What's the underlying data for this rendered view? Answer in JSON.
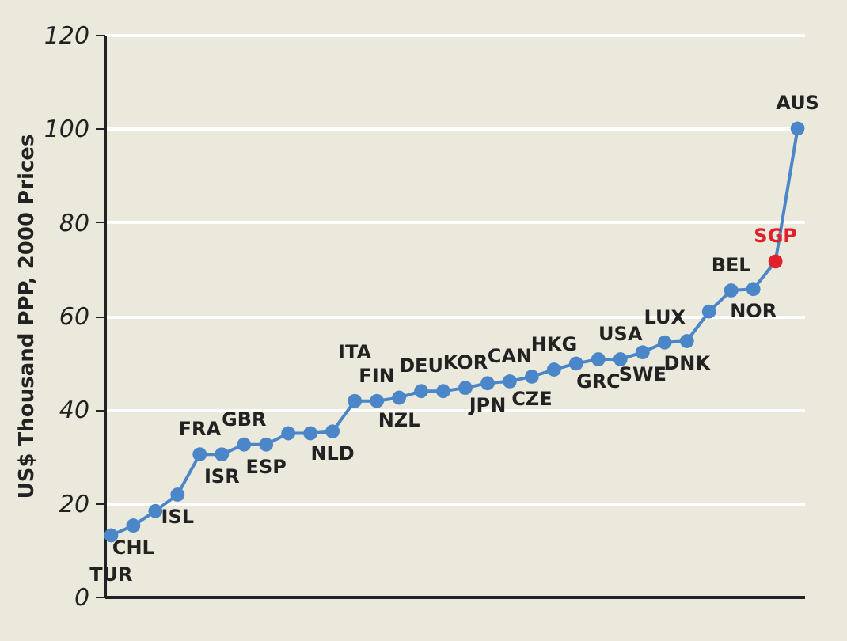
{
  "chart_data": {
    "type": "line",
    "ylabel": "US$ Thousand PPP,  2000 Prices",
    "categories": [
      "TUR",
      "CHL",
      null,
      "ISL",
      "FRA",
      "ISR",
      "GBR",
      "ESP",
      null,
      null,
      "NLD",
      "ITA",
      "FIN",
      "NZL",
      "DEU",
      null,
      "KOR",
      "JPN",
      "CAN",
      "CZE",
      "HKG",
      null,
      "GRC",
      "USA",
      "SWE",
      "LUX",
      "DNK",
      null,
      "BEL",
      "NOR",
      "SGP",
      "AUS"
    ],
    "values": [
      13.1,
      15.2,
      18.3,
      21.8,
      30.4,
      30.4,
      32.5,
      32.5,
      34.9,
      34.9,
      35.3,
      41.8,
      41.8,
      42.5,
      43.9,
      43.9,
      44.6,
      45.6,
      46.0,
      47.0,
      48.5,
      49.8,
      50.7,
      50.7,
      52.2,
      54.3,
      54.6,
      60.9,
      65.4,
      65.7,
      71.6,
      100
    ],
    "color": "#4a86c8",
    "colors": [
      "#4a86c8",
      "#4a86c8",
      "#4a86c8",
      "#4a86c8",
      "#4a86c8",
      "#4a86c8",
      "#4a86c8",
      "#4a86c8",
      "#4a86c8",
      "#4a86c8",
      "#4a86c8",
      "#4a86c8",
      "#4a86c8",
      "#4a86c8",
      "#4a86c8",
      "#4a86c8",
      "#4a86c8",
      "#4a86c8",
      "#4a86c8",
      "#4a86c8",
      "#4a86c8",
      "#4a86c8",
      "#4a86c8",
      "#4a86c8",
      "#4a86c8",
      "#4a86c8",
      "#4a86c8",
      "#4a86c8",
      "#4a86c8",
      "#4a86c8",
      "#e0202a",
      "#4a86c8"
    ],
    "ylim": [
      0,
      120
    ],
    "yticks": [
      0,
      20,
      40,
      60,
      80,
      100,
      120
    ],
    "grid": "y",
    "tick_labels": "y",
    "marker": "circle",
    "line_style": "solid"
  }
}
